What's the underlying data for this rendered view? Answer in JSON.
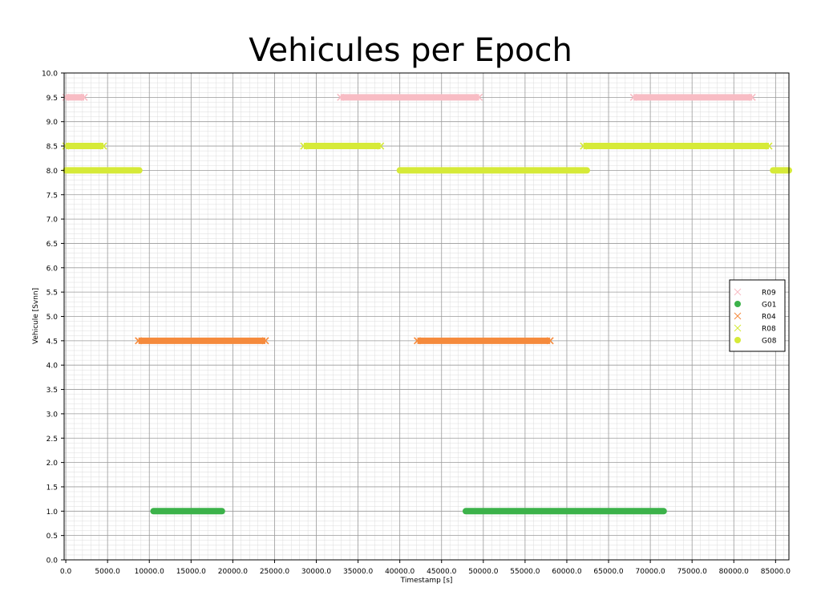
{
  "chart_data": {
    "type": "scatter",
    "title": "Vehicules per Epoch",
    "xlabel": "Timestamp [s]",
    "ylabel": "Vehicule [Svnn]",
    "xlim": [
      -200,
      86600
    ],
    "ylim": [
      0,
      10
    ],
    "x_ticks": [
      0,
      5000,
      10000,
      15000,
      20000,
      25000,
      30000,
      35000,
      40000,
      45000,
      50000,
      55000,
      60000,
      65000,
      70000,
      75000,
      80000,
      85000
    ],
    "x_tick_labels": [
      "0.0",
      "5000.0",
      "10000.0",
      "15000.0",
      "20000.0",
      "25000.0",
      "30000.0",
      "35000.0",
      "40000.0",
      "45000.0",
      "50000.0",
      "55000.0",
      "60000.0",
      "65000.0",
      "70000.0",
      "75000.0",
      "80000.0",
      "85000.0"
    ],
    "y_ticks": [
      0,
      0.5,
      1,
      1.5,
      2,
      2.5,
      3,
      3.5,
      4,
      4.5,
      5,
      5.5,
      6,
      6.5,
      7,
      7.5,
      8,
      8.5,
      9,
      9.5,
      10
    ],
    "y_tick_labels": [
      "0.0",
      "0.5",
      "1.0",
      "1.5",
      "2.0",
      "2.5",
      "3.0",
      "3.5",
      "4.0",
      "4.5",
      "5.0",
      "5.5",
      "6.0",
      "6.5",
      "7.0",
      "7.5",
      "8.0",
      "8.5",
      "9.0",
      "9.5",
      "10.0"
    ],
    "grid": true,
    "minor_grid": true,
    "legend_position": "right",
    "series": [
      {
        "name": "R09",
        "marker": "x",
        "color": "#f8bcc4",
        "y": 9.5,
        "intervals": [
          [
            0,
            2200
          ],
          [
            32900,
            49500
          ],
          [
            68000,
            82200
          ]
        ]
      },
      {
        "name": "G01",
        "marker": "o",
        "color": "#3cb24a",
        "y": 1.0,
        "intervals": [
          [
            10500,
            18700
          ],
          [
            47900,
            71600
          ]
        ]
      },
      {
        "name": "R04",
        "marker": "x",
        "color": "#f58a3c",
        "y": 4.5,
        "intervals": [
          [
            8700,
            23900
          ],
          [
            42100,
            58000
          ]
        ]
      },
      {
        "name": "R08",
        "marker": "x",
        "color": "#d6ea38",
        "y": 8.5,
        "intervals": [
          [
            0,
            4500
          ],
          [
            28500,
            37700
          ],
          [
            62000,
            84200
          ]
        ]
      },
      {
        "name": "G08",
        "marker": "o",
        "color": "#d6ea38",
        "y": 8.0,
        "intervals": [
          [
            0,
            8800
          ],
          [
            40000,
            62400
          ],
          [
            84700,
            86600
          ]
        ]
      }
    ]
  }
}
